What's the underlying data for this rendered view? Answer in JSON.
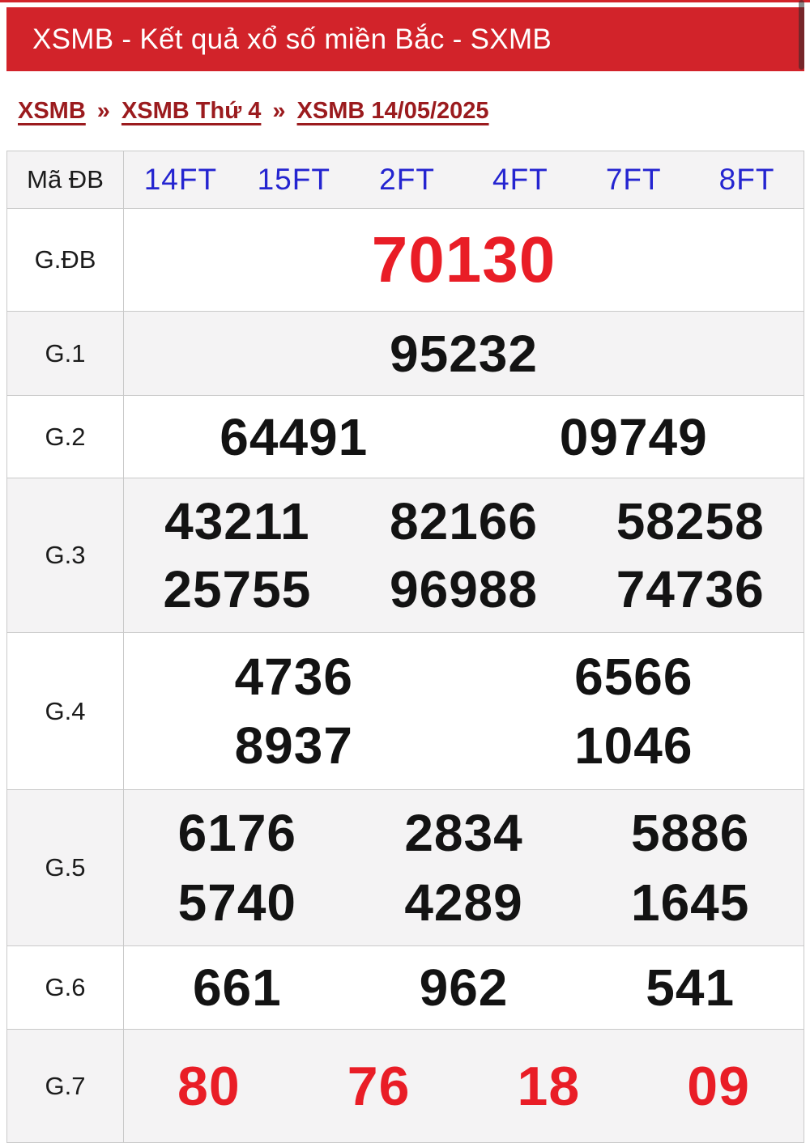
{
  "header": {
    "title": "XSMB - Kết quả xổ số miền Bắc - SXMB"
  },
  "breadcrumb": {
    "separator": "»",
    "items": [
      "XSMB",
      "XSMB Thứ 4",
      "XSMB 14/05/2025"
    ]
  },
  "table": {
    "code_row": {
      "id": "ma-db",
      "label": "Mã ĐB",
      "codes": [
        "14FT",
        "15FT",
        "2FT",
        "4FT",
        "7FT",
        "8FT"
      ]
    },
    "prize_rows": [
      {
        "id": "gdb",
        "label": "G.ĐB",
        "lines": [
          [
            "70130"
          ]
        ]
      },
      {
        "id": "g1",
        "label": "G.1",
        "lines": [
          [
            "95232"
          ]
        ]
      },
      {
        "id": "g2",
        "label": "G.2",
        "lines": [
          [
            "64491",
            "09749"
          ]
        ]
      },
      {
        "id": "g3",
        "label": "G.3",
        "lines": [
          [
            "43211",
            "82166",
            "58258"
          ],
          [
            "25755",
            "96988",
            "74736"
          ]
        ]
      },
      {
        "id": "g4",
        "label": "G.4",
        "lines": [
          [
            "4736",
            "6566"
          ],
          [
            "8937",
            "1046"
          ]
        ]
      },
      {
        "id": "g5",
        "label": "G.5",
        "lines": [
          [
            "6176",
            "2834",
            "5886"
          ],
          [
            "5740",
            "4289",
            "1645"
          ]
        ]
      },
      {
        "id": "g6",
        "label": "G.6",
        "lines": [
          [
            "661",
            "962",
            "541"
          ]
        ]
      },
      {
        "id": "g7",
        "label": "G.7",
        "lines": [
          [
            "80",
            "76",
            "18",
            "09"
          ]
        ]
      }
    ]
  },
  "colors": {
    "header_red": "#d2232a",
    "number_red": "#e91d26",
    "maroon": "#9b1b1e",
    "code_blue": "#2424d0",
    "stripe_gray": "#f4f3f4",
    "border_gray": "#c9c9c9",
    "text_black": "#131313"
  }
}
